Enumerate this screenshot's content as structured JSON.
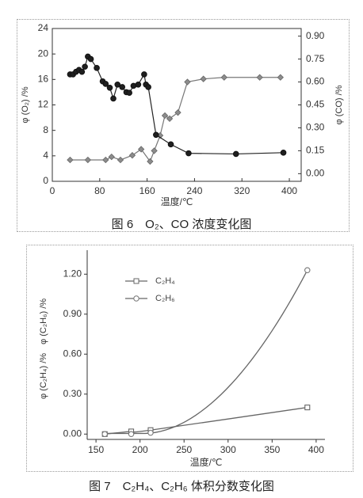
{
  "chart_data": [
    {
      "type": "line",
      "title": "",
      "caption": "图 6　O₂、CO 浓度变化图",
      "xlabel": "温度/℃",
      "ylabel_left": "φ (O₂) /%",
      "ylabel_right": "φ (CO) /%",
      "xlim": [
        0,
        420
      ],
      "ylim_left": [
        0,
        24
      ],
      "ylim_right": [
        -0.05,
        0.95
      ],
      "x_ticks": [
        "0",
        "80",
        "160",
        "240",
        "320",
        "400"
      ],
      "y_ticks_left": [
        "0",
        "4",
        "8",
        "12",
        "16",
        "20",
        "24"
      ],
      "y_ticks_right": [
        "0.00",
        "0.15",
        "0.30",
        "0.45",
        "0.60",
        "0.75",
        "0.90"
      ],
      "grid": false,
      "series": [
        {
          "axis": "left",
          "marker": "circle",
          "x": [
            30,
            35,
            40,
            45,
            50,
            55,
            60,
            65,
            75,
            85,
            90,
            97,
            103,
            110,
            118,
            125,
            130,
            137,
            145,
            155,
            158,
            162,
            175,
            200,
            230,
            310,
            390
          ],
          "y": [
            16.8,
            16.8,
            17.2,
            17.5,
            17.2,
            18.0,
            19.6,
            19.2,
            17.8,
            15.7,
            15.3,
            14.7,
            13.0,
            15.2,
            14.8,
            14.0,
            13.9,
            15.0,
            15.2,
            16.8,
            15.2,
            14.8,
            7.3,
            5.8,
            4.4,
            4.3,
            4.5
          ]
        },
        {
          "axis": "right",
          "marker": "diamond",
          "x": [
            30,
            60,
            90,
            100,
            115,
            135,
            150,
            165,
            172,
            182,
            190,
            198,
            212,
            228,
            255,
            290,
            350,
            385
          ],
          "y": [
            0.09,
            0.09,
            0.09,
            0.11,
            0.09,
            0.12,
            0.16,
            0.08,
            0.15,
            0.25,
            0.38,
            0.36,
            0.4,
            0.6,
            0.62,
            0.63,
            0.63,
            0.63
          ]
        }
      ]
    },
    {
      "type": "line",
      "title": "",
      "caption": "图 7　C₂H₄、C₂H₆ 体积分数变化图",
      "xlabel": "温度/℃",
      "ylabel": "φ (C₂H₄) /%　φ (C₂H₆) /%",
      "xlim": [
        140,
        410
      ],
      "ylim": [
        -0.04,
        1.38
      ],
      "x_ticks": [
        "150",
        "200",
        "250",
        "300",
        "350",
        "400"
      ],
      "y_ticks": [
        "0.00",
        "0.30",
        "0.60",
        "0.90",
        "1.20"
      ],
      "grid": false,
      "legend": "upper-left",
      "series": [
        {
          "name": "C₂H₄",
          "marker": "square",
          "x": [
            160,
            190,
            212,
            390
          ],
          "y": [
            0.0,
            0.02,
            0.03,
            0.2
          ]
        },
        {
          "name": "C₂H₆",
          "marker": "circle",
          "x": [
            160,
            190,
            212,
            390
          ],
          "y": [
            0.0,
            0.0,
            0.01,
            1.23
          ]
        }
      ]
    }
  ]
}
